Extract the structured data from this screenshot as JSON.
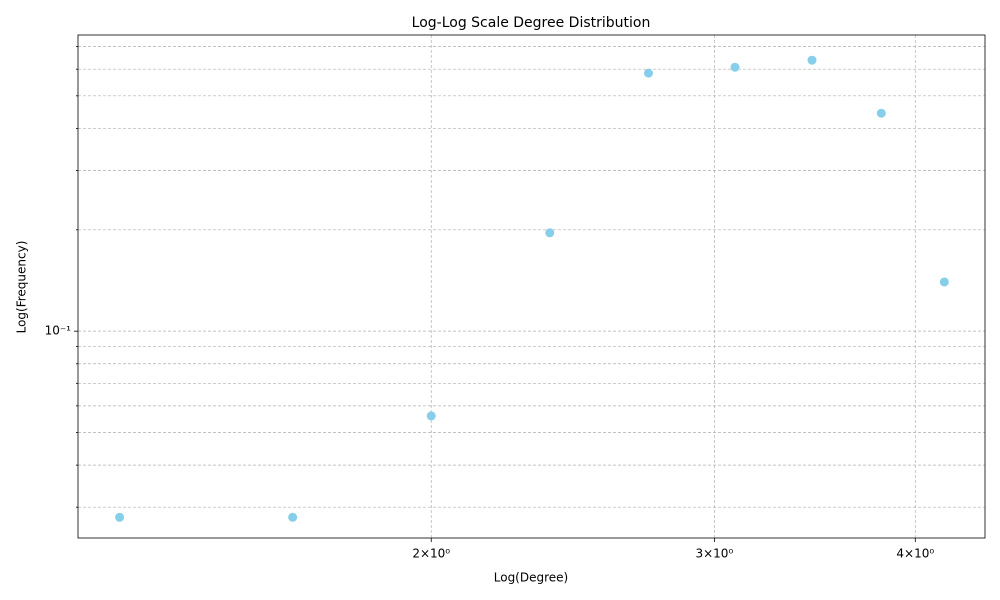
{
  "chart_data": {
    "type": "scatter",
    "title": "Log-Log Scale Degree Distribution",
    "xlabel": "Log(Degree)",
    "ylabel": "Log(Frequency)",
    "x": [
      1.28,
      1.64,
      2.0,
      2.37,
      2.73,
      3.09,
      3.45,
      3.81,
      4.17
    ],
    "values": [
      0.028,
      0.028,
      0.056,
      0.196,
      0.584,
      0.608,
      0.638,
      0.444,
      0.14
    ],
    "color": "#87ceeb",
    "xscale": "log",
    "yscale": "log",
    "xlim": [
      1.206,
      4.42
    ],
    "ylim": [
      0.0243,
      0.758
    ],
    "xticks": [
      {
        "value": 2,
        "label": "2×10⁰"
      },
      {
        "value": 3,
        "label": "3×10⁰"
      },
      {
        "value": 4,
        "label": "4×10⁰"
      }
    ],
    "yticks": [
      {
        "value": 0.1,
        "label": "10⁻¹"
      }
    ],
    "yticks_minor": [
      0.03,
      0.04,
      0.05,
      0.06,
      0.07,
      0.08,
      0.09,
      0.2,
      0.3,
      0.4,
      0.5,
      0.6,
      0.7
    ],
    "grid": true
  }
}
